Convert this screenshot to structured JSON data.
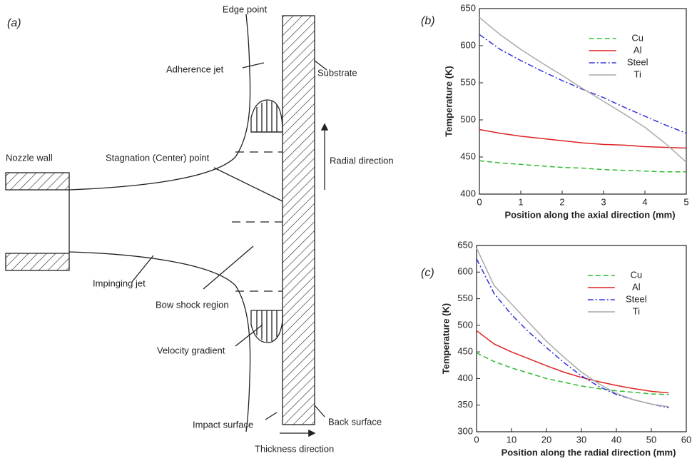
{
  "diagram": {
    "panel_label": "(a)",
    "labels": [
      "Edge point",
      "Adherence jet",
      "Substrate",
      "Nozzle wall",
      "Stagnation (Center) point",
      "Radial direction",
      "Impinging jet",
      "Bow shock region",
      "Velocity gradient",
      "Impact surface",
      "Back surface",
      "Thickness direction"
    ]
  },
  "chart_data": [
    {
      "type": "line",
      "panel_label": "(b)",
      "x_label": "Position along the axial direction (mm)",
      "y_label": "Temperature (K)",
      "x": [
        0,
        0.5,
        1,
        1.5,
        2,
        2.5,
        3,
        3.5,
        4,
        4.5,
        5
      ],
      "series": [
        {
          "name": "Cu",
          "color": "#33bb33",
          "dash": "dashed",
          "values": [
            445,
            442,
            440,
            438,
            436,
            435,
            433,
            432,
            431,
            430,
            430
          ]
        },
        {
          "name": "Al",
          "color": "#dd2222",
          "dash": "solid",
          "values": [
            487,
            482,
            478,
            475,
            472,
            469,
            467,
            466,
            464,
            463,
            462
          ]
        },
        {
          "name": "Steel",
          "color": "#3333dd",
          "dash": "dash-dot",
          "values": [
            615,
            595,
            580,
            566,
            553,
            541,
            530,
            517,
            505,
            493,
            482
          ]
        },
        {
          "name": "Ti",
          "color": "#aaaaaa",
          "dash": "solid",
          "values": [
            638,
            615,
            595,
            577,
            560,
            542,
            525,
            508,
            490,
            468,
            443
          ]
        }
      ],
      "xlim": [
        0,
        5
      ],
      "xticks": [
        0,
        1,
        2,
        3,
        4,
        5
      ],
      "ylim": [
        400,
        650
      ],
      "yticks": [
        400,
        450,
        500,
        550,
        600,
        650
      ],
      "grid": false,
      "legend": "upper right"
    },
    {
      "type": "line",
      "panel_label": "(c)",
      "x_label": "Position along the radial direction (mm)",
      "y_label": "Temperature (K)",
      "x": [
        0,
        5,
        10,
        15,
        20,
        25,
        30,
        35,
        40,
        45,
        50,
        55
      ],
      "series": [
        {
          "name": "Cu",
          "color": "#33bb33",
          "dash": "dashed",
          "values": [
            448,
            432,
            420,
            410,
            400,
            393,
            386,
            381,
            377,
            374,
            371,
            370
          ]
        },
        {
          "name": "Al",
          "color": "#dd2222",
          "dash": "solid",
          "values": [
            490,
            465,
            450,
            437,
            424,
            412,
            402,
            394,
            387,
            381,
            376,
            373
          ]
        },
        {
          "name": "Steel",
          "color": "#3333dd",
          "dash": "dash-dot",
          "values": [
            625,
            560,
            520,
            487,
            458,
            430,
            405,
            385,
            370,
            360,
            352,
            345
          ]
        },
        {
          "name": "Ti",
          "color": "#aaaaaa",
          "dash": "solid",
          "values": [
            645,
            575,
            540,
            505,
            470,
            440,
            412,
            390,
            372,
            360,
            352,
            347
          ]
        }
      ],
      "xlim": [
        0,
        60
      ],
      "xticks": [
        0,
        10,
        20,
        30,
        40,
        50,
        60
      ],
      "ylim": [
        300,
        650
      ],
      "yticks": [
        300,
        350,
        400,
        450,
        500,
        550,
        600,
        650
      ],
      "grid": false,
      "legend": "upper right"
    }
  ]
}
